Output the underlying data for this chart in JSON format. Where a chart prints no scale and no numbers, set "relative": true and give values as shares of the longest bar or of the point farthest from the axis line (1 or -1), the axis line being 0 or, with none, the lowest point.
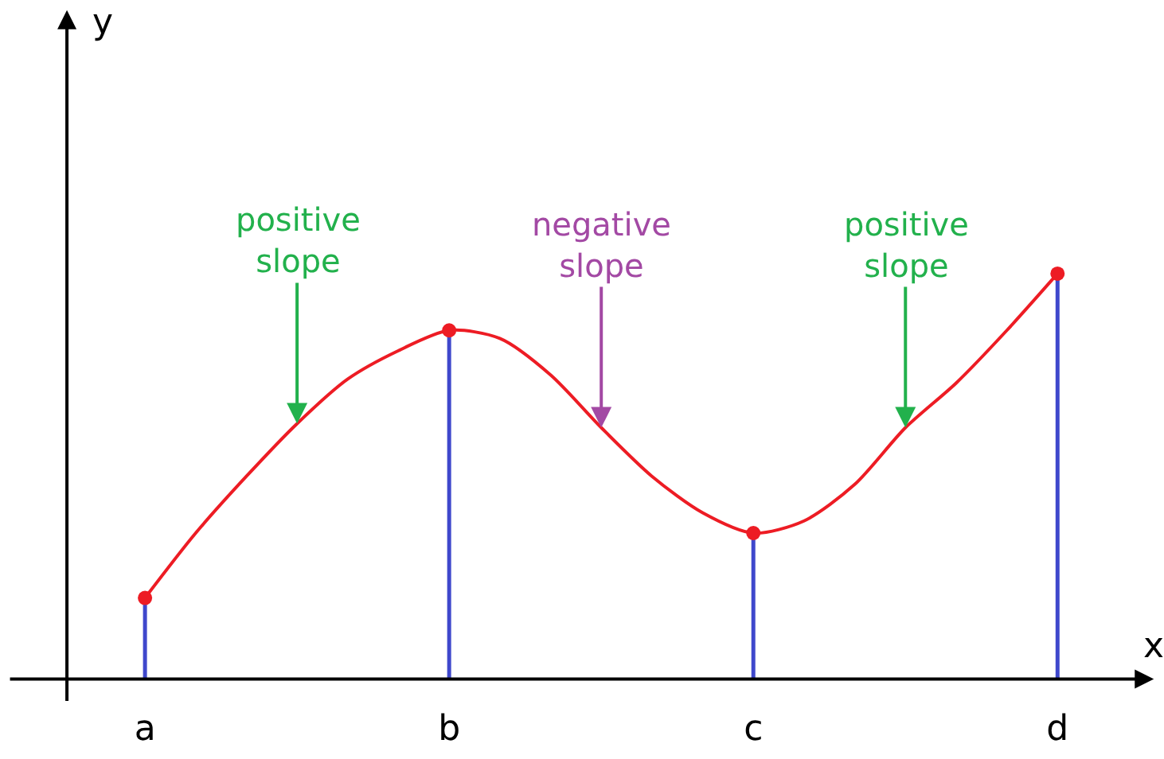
{
  "chart_data": {
    "type": "line",
    "relative": true,
    "xlabel": "x",
    "categories": [
      "a",
      null,
      null,
      null,
      null,
      null,
      "b",
      null,
      null,
      null,
      null,
      null,
      "c",
      null,
      null,
      null,
      null,
      null,
      "d"
    ],
    "series": [
      {
        "color": "#ed1c24",
        "values": [
          0.2,
          0.36,
          0.5,
          0.63,
          0.74,
          0.81,
          0.86,
          0.84,
          0.75,
          0.62,
          0.5,
          0.41,
          0.36,
          0.39,
          0.48,
          0.62,
          0.73,
          0.86,
          1.0
        ]
      },
      {
        "type": "lollipop",
        "color": "#3f48cc",
        "marker": "circle",
        "values": [
          0.2,
          null,
          null,
          null,
          null,
          null,
          0.86,
          null,
          null,
          null,
          null,
          null,
          0.36,
          null,
          null,
          null,
          null,
          null,
          1.0
        ],
        "colors": [
          "#ed1c24",
          null,
          null,
          null,
          null,
          null,
          "#ed1c24",
          null,
          null,
          null,
          null,
          null,
          "#ed1c24",
          null,
          null,
          null,
          null,
          null,
          "#ed1c24"
        ]
      }
    ],
    "annotations": [
      "y",
      "positive\nslope",
      "negative\nslope",
      "positive\nslope"
    ]
  }
}
